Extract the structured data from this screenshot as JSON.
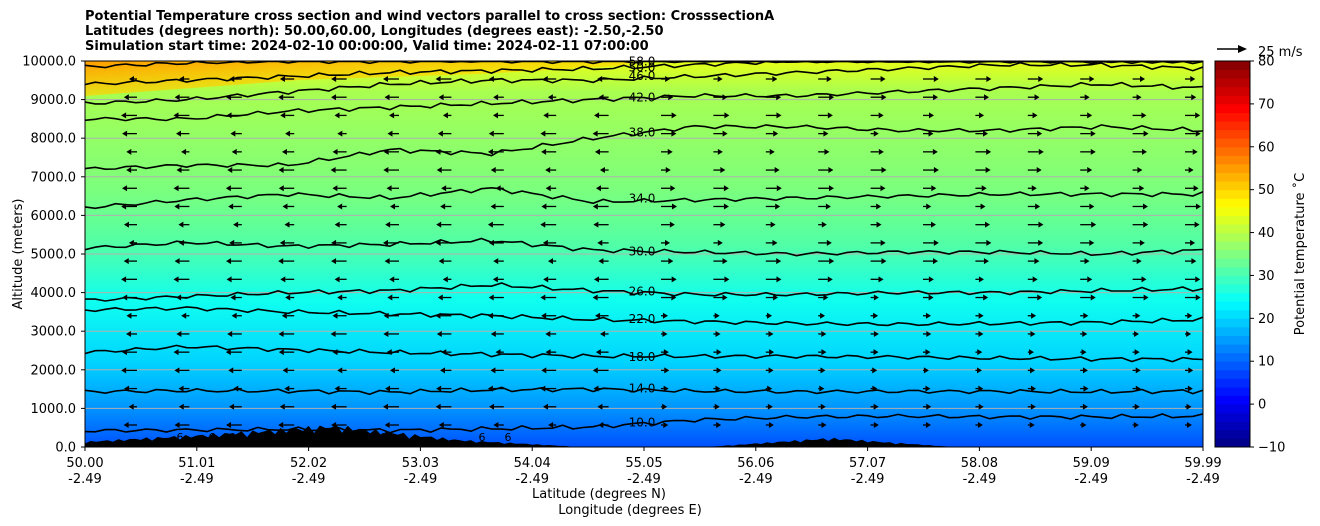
{
  "chart_data": {
    "type": "filled-contour with contour lines and wind vectors",
    "title_lines": [
      "Potential Temperature cross section and wind vectors parallel to cross section: CrosssectionA",
      "Latitudes (degrees north): 50.00,60.00, Longitudes (degrees east): -2.50,-2.50",
      "Simulation start time: 2024-02-10 00:00:00, Valid time: 2024-02-11 07:00:00"
    ],
    "ylabel": "Altitude (meters)",
    "xlabel_lines": [
      "Latitude (degrees N)",
      "Longitude (degrees E)"
    ],
    "ylim": [
      0,
      10000
    ],
    "xlim": [
      50.0,
      59.99
    ],
    "y_ticks": [
      "0.0",
      "1000.0",
      "2000.0",
      "3000.0",
      "4000.0",
      "5000.0",
      "6000.0",
      "7000.0",
      "8000.0",
      "9000.0",
      "10000.0"
    ],
    "y_tick_values": [
      0,
      1000,
      2000,
      3000,
      4000,
      5000,
      6000,
      7000,
      8000,
      9000,
      10000
    ],
    "x_ticks": [
      {
        "lat": "50.00",
        "lon": "-2.49"
      },
      {
        "lat": "51.01",
        "lon": "-2.49"
      },
      {
        "lat": "52.02",
        "lon": "-2.49"
      },
      {
        "lat": "53.03",
        "lon": "-2.49"
      },
      {
        "lat": "54.04",
        "lon": "-2.49"
      },
      {
        "lat": "55.05",
        "lon": "-2.49"
      },
      {
        "lat": "56.06",
        "lon": "-2.49"
      },
      {
        "lat": "57.07",
        "lon": "-2.49"
      },
      {
        "lat": "58.08",
        "lon": "-2.49"
      },
      {
        "lat": "59.09",
        "lon": "-2.49"
      },
      {
        "lat": "59.99",
        "lon": "-2.49"
      }
    ],
    "grid": "horizontal lines at y ticks",
    "colorbar": {
      "label": "Potential temperature $^\\circ$C",
      "label_display": "Potential temperature ˚C",
      "range": [
        -10,
        80
      ],
      "ticks": [
        "−10",
        "0",
        "10",
        "20",
        "30",
        "40",
        "50",
        "60",
        "70",
        "80"
      ],
      "tick_values": [
        -10,
        0,
        10,
        20,
        30,
        40,
        50,
        60,
        70,
        80
      ],
      "colormap": "jet"
    },
    "quiver_key": "25 m/s",
    "contour_lines": [
      {
        "level": 10,
        "label": "10.0",
        "heights": [
          420,
          440,
          460,
          430,
          470,
          520,
          700,
          780,
          800,
          780,
          780,
          800
        ]
      },
      {
        "level": 14,
        "label": "14.0",
        "heights": [
          1430,
          1460,
          1450,
          1420,
          1480,
          1500,
          1450,
          1430,
          1440,
          1440,
          1430,
          1450
        ]
      },
      {
        "level": 18,
        "label": "18.0",
        "heights": [
          2450,
          2600,
          2520,
          2450,
          2400,
          2350,
          2350,
          2350,
          2330,
          2300,
          2280,
          2270
        ]
      },
      {
        "level": 22,
        "label": "22.0",
        "heights": [
          3550,
          3600,
          3500,
          3450,
          3400,
          3300,
          3250,
          3200,
          3180,
          3200,
          3230,
          3300
        ]
      },
      {
        "level": 26,
        "label": "26.0",
        "heights": [
          3800,
          3900,
          4000,
          4050,
          4200,
          4050,
          3950,
          3950,
          4000,
          4000,
          4050,
          4100
        ]
      },
      {
        "level": 30,
        "label": "30.0",
        "heights": [
          5150,
          5300,
          5200,
          5250,
          5350,
          5100,
          5050,
          5000,
          5050,
          5050,
          5000,
          5100
        ]
      },
      {
        "level": 34,
        "label": "34.0",
        "heights": [
          6200,
          6400,
          6550,
          6450,
          6700,
          6350,
          6400,
          6450,
          6500,
          6550,
          6550,
          6550
        ]
      },
      {
        "level": 38,
        "label": "38.0",
        "heights": [
          7200,
          7300,
          7300,
          7700,
          7600,
          8000,
          8300,
          8300,
          8200,
          8200,
          8300,
          8200
        ]
      },
      {
        "level": 42,
        "label": "42.0",
        "heights": [
          8500,
          8500,
          8700,
          8800,
          8900,
          9000,
          9100,
          9100,
          9200,
          9300,
          9400,
          9300
        ]
      },
      {
        "level": 46,
        "label": "46.0",
        "heights": [
          8900,
          9000,
          9200,
          9400,
          9500,
          9500,
          9600,
          9700,
          9800,
          9900,
          9900,
          9800
        ]
      },
      {
        "level": 50,
        "label": "50.0",
        "heights": [
          9400,
          9500,
          9600,
          9700,
          9750,
          9800,
          9900,
          10000,
          10000,
          10000,
          10000,
          10000
        ]
      },
      {
        "level": 58,
        "label": "58.0",
        "heights": [
          9850,
          9950,
          10000,
          10000,
          10000,
          10000,
          10000,
          10000,
          10000,
          10000,
          10000,
          10000
        ]
      }
    ],
    "surface_contour_label": "6",
    "terrain_peak_heights_m": [
      150,
      350,
      600,
      200,
      0,
      0,
      250,
      0,
      0,
      0
    ]
  }
}
